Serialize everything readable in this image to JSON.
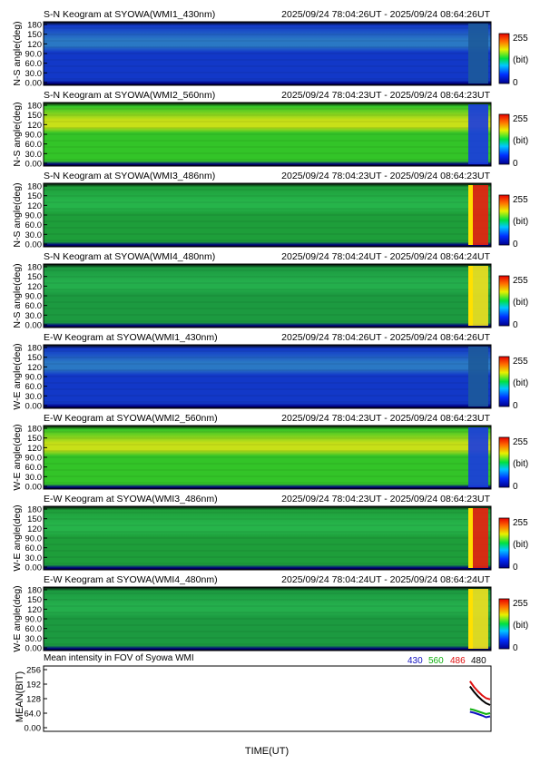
{
  "keograms": [
    {
      "title": "S-N Keogram at SYOWA(WMI1_430nm)",
      "time_range": "2025/09/24 78:04:26UT - 2025/09/24 08:64:26UT",
      "ylabel": "N-S angle(deg)",
      "ticks": [
        "180",
        "150",
        "120",
        "90.0",
        "60.0",
        "30.0",
        "0.00"
      ],
      "colorbar_max": "255",
      "colorbar_unit": "(bit)",
      "colorbar_min": "0",
      "base": "#1238c8",
      "band": "#2a78c4",
      "event": "#1d5a9a",
      "event_hue": "blue"
    },
    {
      "title": "S-N Keogram at SYOWA(WMI2_560nm)",
      "time_range": "2025/09/24 78:04:23UT - 2025/09/24 08:64:23UT",
      "ylabel": "N-S angle(deg)",
      "ticks": [
        "180",
        "150",
        "120",
        "90.0",
        "60.0",
        "30.0",
        "0.00"
      ],
      "colorbar_max": "255",
      "colorbar_unit": "(bit)",
      "colorbar_min": "0",
      "base": "#33c428",
      "band": "#c8e018",
      "event": "#1a3ae0",
      "event_hue": "blue"
    },
    {
      "title": "S-N Keogram at SYOWA(WMI3_486nm)",
      "time_range": "2025/09/24 78:04:23UT - 2025/09/24 08:64:23UT",
      "ylabel": "N-S angle(deg)",
      "ticks": [
        "180",
        "150",
        "120",
        "90.0",
        "60.0",
        "30.0",
        "0.00"
      ],
      "colorbar_max": "255",
      "colorbar_unit": "(bit)",
      "colorbar_min": "0",
      "base": "#1e9e3a",
      "band": "#26b44a",
      "event": "#e82010",
      "event_hue": "red"
    },
    {
      "title": "S-N Keogram at SYOWA(WMI4_480nm)",
      "time_range": "2025/09/24 78:04:24UT - 2025/09/24 08:64:24UT",
      "ylabel": "N-S angle(deg)",
      "ticks": [
        "180",
        "150",
        "120",
        "90.0",
        "60.0",
        "30.0",
        "0.00"
      ],
      "colorbar_max": "255",
      "colorbar_unit": "(bit)",
      "colorbar_min": "0",
      "base": "#1c9a40",
      "band": "#24ae4c",
      "event": "#f0e020",
      "event_hue": "yellow"
    },
    {
      "title": "E-W Keogram at SYOWA(WMI1_430nm)",
      "time_range": "2025/09/24 78:04:26UT - 2025/09/24 08:64:26UT",
      "ylabel": "W-E angle(deg)",
      "ticks": [
        "180",
        "150",
        "120",
        "90.0",
        "60.0",
        "30.0",
        "0.00"
      ],
      "colorbar_max": "255",
      "colorbar_unit": "(bit)",
      "colorbar_min": "0",
      "base": "#1238c8",
      "band": "#2a78c4",
      "event": "#1d5a9a",
      "event_hue": "blue"
    },
    {
      "title": "E-W Keogram at SYOWA(WMI2_560nm)",
      "time_range": "2025/09/24 78:04:23UT - 2025/09/24 08:64:23UT",
      "ylabel": "W-E angle(deg)",
      "ticks": [
        "180",
        "150",
        "120",
        "90.0",
        "60.0",
        "30.0",
        "0.00"
      ],
      "colorbar_max": "255",
      "colorbar_unit": "(bit)",
      "colorbar_min": "0",
      "base": "#33c428",
      "band": "#c8e018",
      "event": "#1a3ae0",
      "event_hue": "blue"
    },
    {
      "title": "E-W Keogram at SYOWA(WMI3_486nm)",
      "time_range": "2025/09/24 78:04:23UT - 2025/09/24 08:64:23UT",
      "ylabel": "W-E angle(deg)",
      "ticks": [
        "180",
        "150",
        "120",
        "90.0",
        "60.0",
        "30.0",
        "0.00"
      ],
      "colorbar_max": "255",
      "colorbar_unit": "(bit)",
      "colorbar_min": "0",
      "base": "#1e9e3a",
      "band": "#26b44a",
      "event": "#e82010",
      "event_hue": "red"
    },
    {
      "title": "E-W Keogram at SYOWA(WMI4_480nm)",
      "time_range": "2025/09/24 78:04:24UT - 2025/09/24 08:64:24UT",
      "ylabel": "W-E angle(deg)",
      "ticks": [
        "180",
        "150",
        "120",
        "90.0",
        "60.0",
        "30.0",
        "0.00"
      ],
      "colorbar_max": "255",
      "colorbar_unit": "(bit)",
      "colorbar_min": "0",
      "base": "#1c9a40",
      "band": "#24ae4c",
      "event": "#f0e020",
      "event_hue": "yellow"
    }
  ],
  "mean_panel": {
    "title": "Mean intensity in FOV of Syowa WMI",
    "ylabel": "MEAN(BIT)",
    "xlabel": "TIME(UT)",
    "yticks": [
      "256",
      "192",
      "128",
      "64.0",
      "0.00"
    ],
    "legend": [
      {
        "label": "430",
        "color": "#1010c0"
      },
      {
        "label": "560",
        "color": "#10b010"
      },
      {
        "label": "486",
        "color": "#e01010"
      },
      {
        "label": "480",
        "color": "#000000"
      }
    ]
  },
  "chart_data": {
    "type": "line",
    "title": "Mean intensity in FOV of Syowa WMI",
    "ylabel": "MEAN(BIT)",
    "xlabel": "TIME(UT)",
    "ylim": [
      0,
      256
    ],
    "x": [
      0.953,
      0.962,
      0.971,
      0.98,
      0.989,
      0.998
    ],
    "series": [
      {
        "name": "486",
        "color": "#e01010",
        "values": [
          205,
          180,
          160,
          143,
          130,
          125
        ]
      },
      {
        "name": "480",
        "color": "#000000",
        "values": [
          182,
          158,
          138,
          121,
          108,
          100
        ]
      },
      {
        "name": "560",
        "color": "#10b010",
        "values": [
          82,
          78,
          72,
          66,
          60,
          64
        ]
      },
      {
        "name": "430",
        "color": "#1010c0",
        "values": [
          70,
          66,
          60,
          54,
          46,
          50
        ]
      }
    ]
  }
}
